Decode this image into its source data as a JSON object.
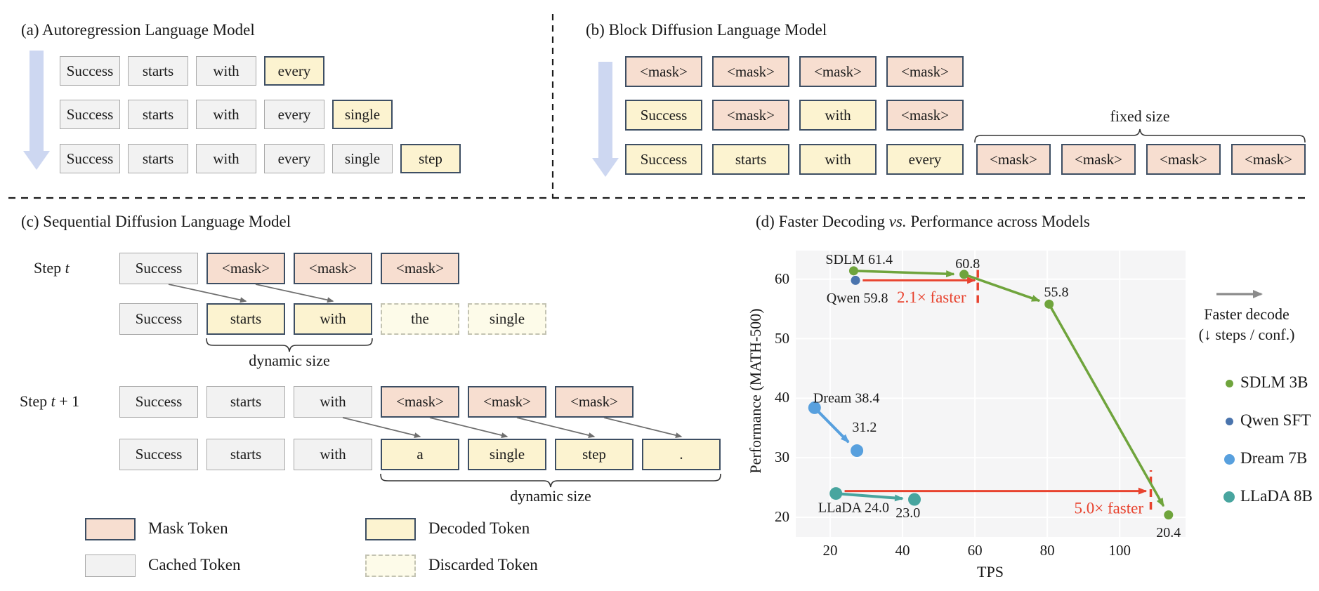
{
  "colors": {
    "mask_fill": "#f7ded0",
    "decoded_fill": "#fcf3d0",
    "cached_fill": "#f2f2f2",
    "discarded_fill": "#fdfbe9",
    "box_border_dark": "#3d4e63",
    "cached_border": "#a8a8a8",
    "flow_arrow": "#cdd7f1",
    "diag_arrow": "#6e6e6e",
    "divider": "#1a1a1a",
    "green": "#6fa43c",
    "qwen_blue": "#4a74ad",
    "dream_blue": "#58a0de",
    "llada_teal": "#48a59f",
    "red": "#e8432f",
    "legend_gray": "#8b8b8b",
    "plot_bg": "#f5f5f6"
  },
  "panel_a": {
    "title": "(a) Autoregression Language Model",
    "rows": [
      [
        {
          "text": "Success",
          "style": "cached"
        },
        {
          "text": "starts",
          "style": "cached"
        },
        {
          "text": "with",
          "style": "cached"
        },
        {
          "text": "every",
          "style": "decoded"
        }
      ],
      [
        {
          "text": "Success",
          "style": "cached"
        },
        {
          "text": "starts",
          "style": "cached"
        },
        {
          "text": "with",
          "style": "cached"
        },
        {
          "text": "every",
          "style": "cached"
        },
        {
          "text": "single",
          "style": "decoded"
        }
      ],
      [
        {
          "text": "Success",
          "style": "cached"
        },
        {
          "text": "starts",
          "style": "cached"
        },
        {
          "text": "with",
          "style": "cached"
        },
        {
          "text": "every",
          "style": "cached"
        },
        {
          "text": "single",
          "style": "cached"
        },
        {
          "text": "step",
          "style": "decoded"
        }
      ]
    ]
  },
  "panel_b": {
    "title": "(b) Block Diffusion Language Model",
    "fixed_size_label": "fixed size",
    "rows": [
      [
        {
          "text": "<mask>",
          "style": "mask"
        },
        {
          "text": "<mask>",
          "style": "mask"
        },
        {
          "text": "<mask>",
          "style": "mask"
        },
        {
          "text": "<mask>",
          "style": "mask"
        }
      ],
      [
        {
          "text": "Success",
          "style": "decoded"
        },
        {
          "text": "<mask>",
          "style": "mask"
        },
        {
          "text": "with",
          "style": "decoded"
        },
        {
          "text": "<mask>",
          "style": "mask"
        }
      ],
      [
        {
          "text": "Success",
          "style": "decoded"
        },
        {
          "text": "starts",
          "style": "decoded"
        },
        {
          "text": "with",
          "style": "decoded"
        },
        {
          "text": "every",
          "style": "decoded"
        }
      ]
    ],
    "row3_masks": [
      {
        "text": "<mask>",
        "style": "mask"
      },
      {
        "text": "<mask>",
        "style": "mask"
      },
      {
        "text": "<mask>",
        "style": "mask"
      },
      {
        "text": "<mask>",
        "style": "mask"
      }
    ]
  },
  "panel_c": {
    "title": "(c) Sequential Diffusion Language Model",
    "dynamic_size_label_1": "dynamic size",
    "dynamic_size_label_2": "dynamic size",
    "steps": [
      {
        "label_pre": "Step ",
        "label_italic": "t",
        "label_post": "",
        "top_row": [
          {
            "text": "Success",
            "style": "cached"
          },
          {
            "text": "<mask>",
            "style": "mask"
          },
          {
            "text": "<mask>",
            "style": "mask"
          },
          {
            "text": "<mask>",
            "style": "mask"
          }
        ],
        "bottom_row": [
          {
            "text": "Success",
            "style": "cached"
          },
          {
            "text": "starts",
            "style": "decoded"
          },
          {
            "text": "with",
            "style": "decoded"
          },
          {
            "text": "the",
            "style": "discarded"
          },
          {
            "text": "single",
            "style": "discarded"
          }
        ]
      },
      {
        "label_pre": "Step ",
        "label_italic": "t",
        "label_post": " + 1",
        "top_row": [
          {
            "text": "Success",
            "style": "cached"
          },
          {
            "text": "starts",
            "style": "cached"
          },
          {
            "text": "with",
            "style": "cached"
          },
          {
            "text": "<mask>",
            "style": "mask"
          },
          {
            "text": "<mask>",
            "style": "mask"
          },
          {
            "text": "<mask>",
            "style": "mask"
          }
        ],
        "bottom_row": [
          {
            "text": "Success",
            "style": "cached"
          },
          {
            "text": "starts",
            "style": "cached"
          },
          {
            "text": "with",
            "style": "cached"
          },
          {
            "text": "a",
            "style": "decoded"
          },
          {
            "text": "single",
            "style": "decoded"
          },
          {
            "text": "step",
            "style": "decoded"
          },
          {
            "text": ".",
            "style": "decoded"
          }
        ]
      }
    ],
    "legend": [
      {
        "label": "Mask Token",
        "style": "mask"
      },
      {
        "label": "Decoded Token",
        "style": "decoded"
      },
      {
        "label": "Cached Token",
        "style": "cached"
      },
      {
        "label": "Discarded Token",
        "style": "discarded"
      }
    ]
  },
  "panel_d": {
    "title_pre": "(d) Faster Decoding ",
    "title_italic": "vs.",
    "title_post": " Performance across Models",
    "xlabel": "TPS",
    "ylabel": "Performance (MATH-500)",
    "legend_arrow_label_line1": "Faster decode",
    "legend_arrow_label_line2": "(↓ steps / conf.)"
  },
  "chart_data": {
    "type": "scatter",
    "title": "(d) Faster Decoding vs. Performance across Models",
    "xlabel": "TPS",
    "ylabel": "Performance (MATH-500)",
    "xlim": [
      10.5,
      118.2
    ],
    "ylim": [
      16.7,
      64.8
    ],
    "xticks": [
      20,
      40,
      60,
      80,
      100
    ],
    "yticks": [
      20,
      30,
      40,
      50,
      60
    ],
    "grid": true,
    "series": [
      {
        "name": "SDLM 3B",
        "color": "#6fa43c",
        "marker_r": 6.5,
        "line_w": 3.5,
        "arrows": true,
        "points": [
          [
            26.5,
            61.4
          ],
          [
            57,
            60.8
          ],
          [
            80.5,
            55.8
          ],
          [
            113.5,
            20.4
          ]
        ]
      },
      {
        "name": "Qwen SFT",
        "color": "#4a74ad",
        "marker_r": 6.5,
        "line_w": 3.5,
        "arrows": false,
        "points": [
          [
            27,
            59.8
          ]
        ]
      },
      {
        "name": "Dream 7B",
        "color": "#58a0de",
        "marker_r": 9,
        "line_w": 4,
        "arrows": true,
        "points": [
          [
            15.7,
            38.4
          ],
          [
            27.4,
            31.2
          ]
        ]
      },
      {
        "name": "LLaDA 8B",
        "color": "#48a59f",
        "marker_r": 9,
        "line_w": 4,
        "arrows": true,
        "points": [
          [
            21.6,
            24.0
          ],
          [
            43.3,
            23.0
          ]
        ]
      }
    ],
    "speedup_arrows": [
      {
        "label": "2.1× faster",
        "from": [
          29,
          59.8
        ],
        "to": [
          60,
          59.8
        ],
        "dashed_x": 60.8,
        "dashed_y": [
          56,
          61.7
        ],
        "label_pos": [
          48,
          57.0
        ]
      },
      {
        "label": "5.0× faster",
        "from": [
          24,
          24.4
        ],
        "to": [
          107.3,
          24.4
        ],
        "dashed_x": 108.6,
        "dashed_y": [
          21.3,
          27.9
        ],
        "label_pos": [
          97,
          21.6
        ]
      }
    ],
    "point_labels": [
      {
        "text": "SDLM 61.4",
        "x": 28,
        "y": 63.4
      },
      {
        "text": "60.8",
        "x": 58,
        "y": 62.7
      },
      {
        "text": "55.8",
        "x": 82.5,
        "y": 57.9
      },
      {
        "text": "Qwen 59.8",
        "x": 27.5,
        "y": 56.9
      },
      {
        "text": "Dream 38.4",
        "x": 24.5,
        "y": 40.1
      },
      {
        "text": "31.2",
        "x": 29.5,
        "y": 35.2
      },
      {
        "text": "LLaDA 24.0",
        "x": 26.5,
        "y": 21.7
      },
      {
        "text": "23.0",
        "x": 41.5,
        "y": 20.8
      },
      {
        "text": "20.4",
        "x": 113.5,
        "y": 17.5
      }
    ],
    "legend": {
      "arrow_label_line1": "Faster decode",
      "arrow_label_line2": "(↓ steps / conf.)",
      "items": [
        {
          "label": "SDLM 3B",
          "color": "#6fa43c",
          "r": 5.5
        },
        {
          "label": "Qwen SFT",
          "color": "#4a74ad",
          "r": 5.5
        },
        {
          "label": "Dream 7B",
          "color": "#58a0de",
          "r": 7.5
        },
        {
          "label": "LLaDA 8B",
          "color": "#48a59f",
          "r": 8
        }
      ]
    }
  }
}
